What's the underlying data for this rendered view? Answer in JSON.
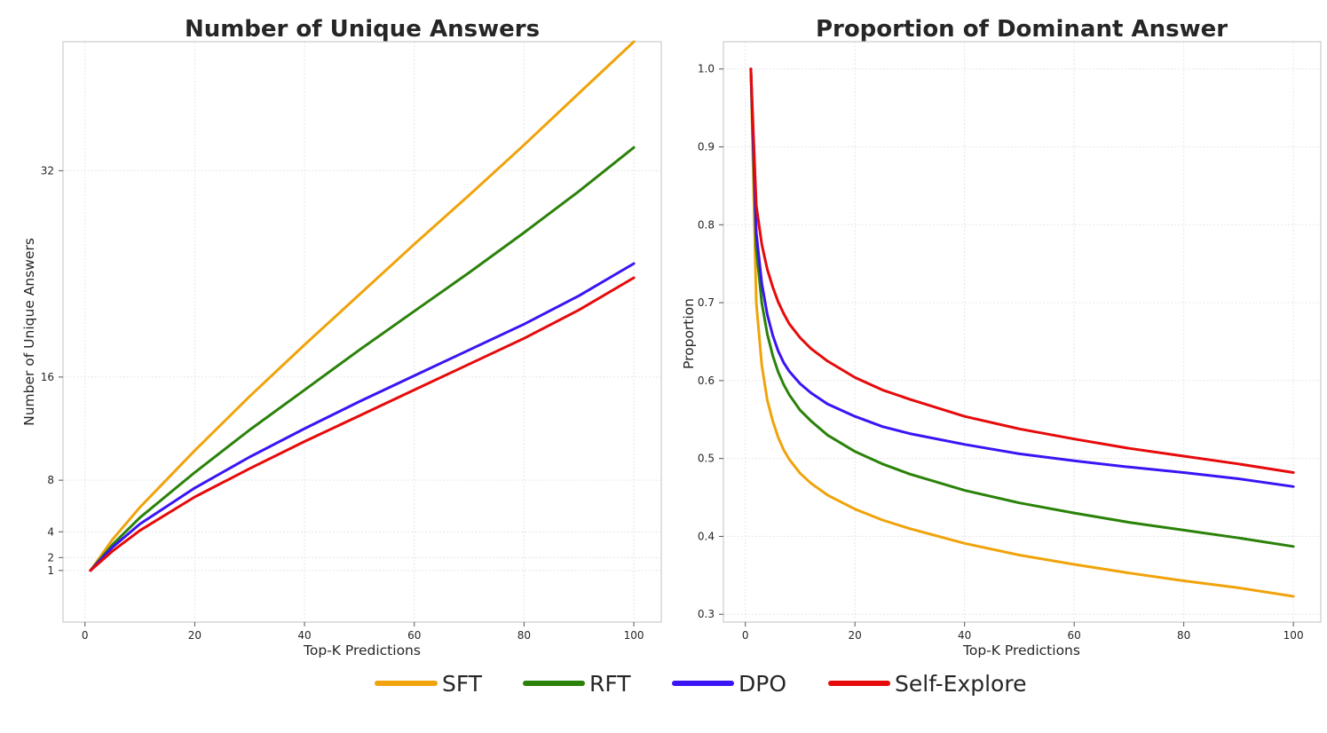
{
  "chart_data": [
    {
      "type": "line",
      "title": "Number of Unique Answers",
      "xlabel": "Top-K Predictions",
      "ylabel": "Number of Unique Answers",
      "xlim": [
        -4,
        105
      ],
      "ylim": [
        -3,
        42
      ],
      "xticks": [
        0,
        20,
        40,
        60,
        80,
        100
      ],
      "yticks": [
        1,
        2,
        4,
        8,
        16,
        32
      ],
      "grid": true,
      "series": [
        {
          "name": "SFT",
          "color": "#f0a30a",
          "x": [
            1,
            5,
            10,
            20,
            30,
            40,
            50,
            60,
            70,
            80,
            90,
            100
          ],
          "y": [
            1,
            3.4,
            5.9,
            10.3,
            14.5,
            18.5,
            22.4,
            26.3,
            30.1,
            34.0,
            38.0,
            42.0
          ]
        },
        {
          "name": "RFT",
          "color": "#2a8209",
          "x": [
            1,
            5,
            10,
            20,
            30,
            40,
            50,
            60,
            70,
            80,
            90,
            100
          ],
          "y": [
            1,
            3.0,
            5.1,
            8.6,
            11.9,
            15.0,
            18.1,
            21.1,
            24.1,
            27.2,
            30.4,
            33.8
          ]
        },
        {
          "name": "DPO",
          "color": "#3a14f5",
          "x": [
            1,
            5,
            10,
            20,
            30,
            40,
            50,
            60,
            70,
            80,
            90,
            100
          ],
          "y": [
            1,
            2.8,
            4.6,
            7.4,
            9.8,
            12.0,
            14.1,
            16.1,
            18.1,
            20.1,
            22.3,
            24.8
          ]
        },
        {
          "name": "Self-Explore",
          "color": "#e60a0a",
          "x": [
            1,
            5,
            10,
            20,
            30,
            40,
            50,
            60,
            70,
            80,
            90,
            100
          ],
          "y": [
            1,
            2.5,
            4.1,
            6.7,
            8.9,
            11.0,
            13.0,
            15.0,
            17.0,
            19.0,
            21.2,
            23.7
          ]
        }
      ]
    },
    {
      "type": "line",
      "title": "Proportion of Dominant Answer",
      "xlabel": "Top-K Predictions",
      "ylabel": "Proportion",
      "xlim": [
        -4,
        105
      ],
      "ylim": [
        0.29,
        1.035
      ],
      "xticks": [
        0,
        20,
        40,
        60,
        80,
        100
      ],
      "yticks": [
        0.3,
        0.4,
        0.5,
        0.6,
        0.7,
        0.8,
        0.9,
        1.0
      ],
      "grid": true,
      "series": [
        {
          "name": "SFT",
          "color": "#f0a30a",
          "x": [
            1,
            2,
            3,
            4,
            5,
            6,
            7,
            8,
            10,
            12,
            15,
            20,
            25,
            30,
            40,
            50,
            60,
            70,
            80,
            90,
            100
          ],
          "y": [
            1.0,
            0.7,
            0.62,
            0.575,
            0.548,
            0.527,
            0.511,
            0.499,
            0.481,
            0.468,
            0.453,
            0.435,
            0.421,
            0.41,
            0.391,
            0.376,
            0.364,
            0.353,
            0.343,
            0.334,
            0.323
          ]
        },
        {
          "name": "RFT",
          "color": "#2a8209",
          "x": [
            1,
            2,
            3,
            4,
            5,
            6,
            7,
            8,
            10,
            12,
            15,
            20,
            25,
            30,
            40,
            50,
            60,
            70,
            80,
            90,
            100
          ],
          "y": [
            1.0,
            0.77,
            0.7,
            0.66,
            0.632,
            0.611,
            0.595,
            0.582,
            0.562,
            0.548,
            0.53,
            0.509,
            0.493,
            0.48,
            0.459,
            0.443,
            0.43,
            0.418,
            0.408,
            0.398,
            0.387
          ]
        },
        {
          "name": "DPO",
          "color": "#3a14f5",
          "x": [
            1,
            2,
            3,
            4,
            5,
            6,
            7,
            8,
            10,
            12,
            15,
            20,
            25,
            30,
            40,
            50,
            60,
            70,
            80,
            90,
            100
          ],
          "y": [
            1.0,
            0.79,
            0.725,
            0.685,
            0.658,
            0.638,
            0.623,
            0.612,
            0.596,
            0.584,
            0.57,
            0.554,
            0.541,
            0.532,
            0.518,
            0.506,
            0.497,
            0.489,
            0.482,
            0.474,
            0.464
          ]
        },
        {
          "name": "Self-Explore",
          "color": "#e60a0a",
          "x": [
            1,
            2,
            3,
            4,
            5,
            6,
            7,
            8,
            10,
            12,
            15,
            20,
            25,
            30,
            40,
            50,
            60,
            70,
            80,
            90,
            100
          ],
          "y": [
            1.0,
            0.825,
            0.775,
            0.743,
            0.72,
            0.701,
            0.686,
            0.673,
            0.655,
            0.641,
            0.625,
            0.604,
            0.588,
            0.576,
            0.554,
            0.538,
            0.525,
            0.513,
            0.503,
            0.493,
            0.482
          ]
        }
      ]
    }
  ],
  "legend": {
    "placement": "bottom-center",
    "items": [
      {
        "label": "SFT",
        "color": "#f0a30a"
      },
      {
        "label": "RFT",
        "color": "#2a8209"
      },
      {
        "label": "DPO",
        "color": "#3a14f5"
      },
      {
        "label": "Self-Explore",
        "color": "#e60a0a"
      }
    ]
  }
}
